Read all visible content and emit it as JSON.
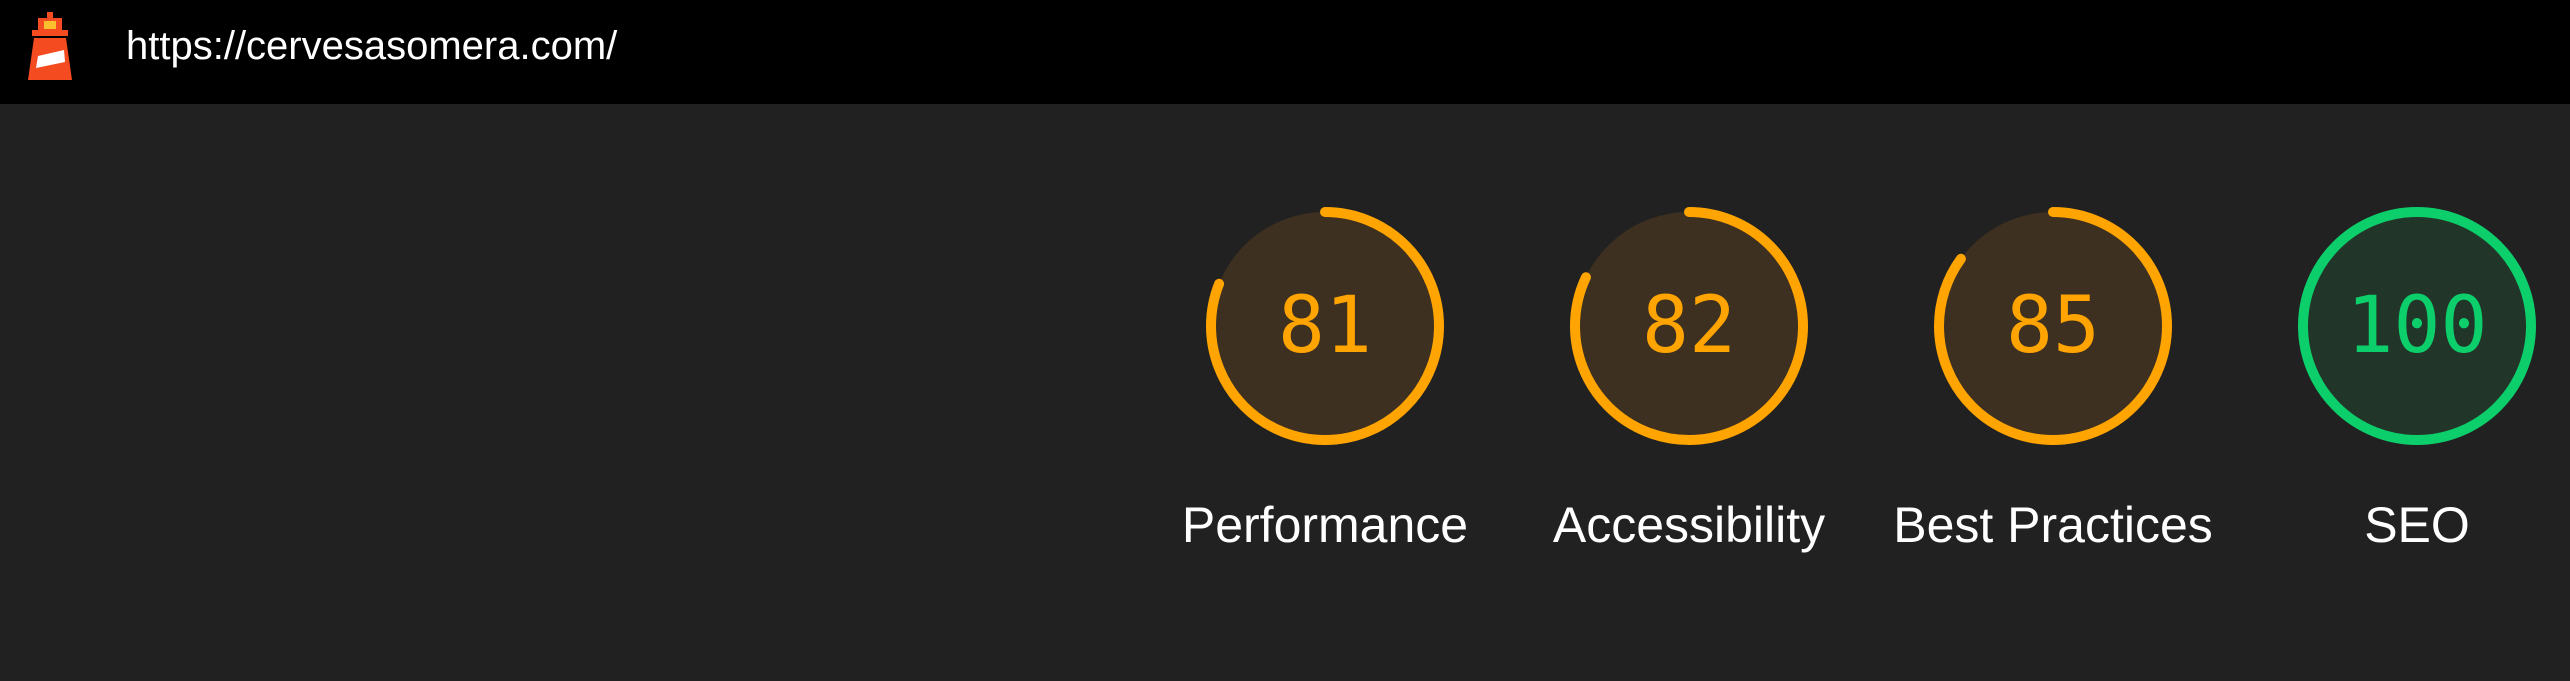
{
  "header": {
    "url": "https://cervesasomera.com/"
  },
  "colors": {
    "average": "#ffa400",
    "average_bg": "#3d3020",
    "pass": "#0cce6b",
    "pass_bg": "#213528"
  },
  "gauges": [
    {
      "id": "performance",
      "score": "81",
      "label": "Performance",
      "fraction": 0.81,
      "rating": "average"
    },
    {
      "id": "accessibility",
      "score": "82",
      "label": "Accessibility",
      "fraction": 0.82,
      "rating": "average"
    },
    {
      "id": "best-practices",
      "score": "85",
      "label": "Best Practices",
      "fraction": 0.85,
      "rating": "average"
    },
    {
      "id": "seo",
      "score": "100",
      "label": "SEO",
      "fraction": 1.0,
      "rating": "pass"
    }
  ]
}
